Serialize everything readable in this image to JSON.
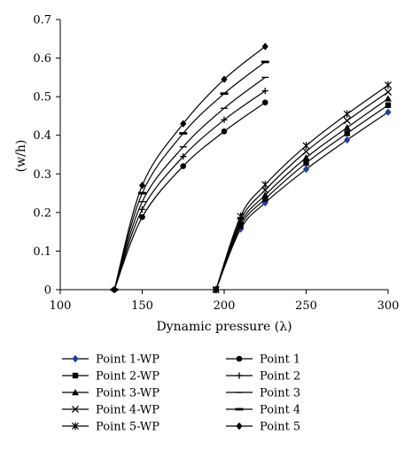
{
  "chart_data": {
    "type": "line",
    "xlabel": "Dynamic pressure (λ)",
    "ylabel": "(w/h)",
    "xlim": [
      100,
      300
    ],
    "ylim": [
      0,
      0.7
    ],
    "xticks": [
      "100",
      "150",
      "200",
      "250",
      "300"
    ],
    "yticks": [
      "0",
      "0.1",
      "0.2",
      "0.3",
      "0.4",
      "0.5",
      "0.6",
      "0.7"
    ],
    "grid": false,
    "legend_placement": "bottom",
    "series": [
      {
        "name": "Point 1-WP",
        "marker": "diamond",
        "color": "#1f3f9f",
        "x": [
          195,
          210,
          225,
          250,
          275,
          300
        ],
        "y": [
          0,
          0.157,
          0.225,
          0.312,
          0.388,
          0.46
        ]
      },
      {
        "name": "Point 2-WP",
        "marker": "square",
        "color": "#000000",
        "x": [
          195,
          210,
          225,
          250,
          275,
          300
        ],
        "y": [
          0,
          0.165,
          0.235,
          0.328,
          0.405,
          0.478
        ]
      },
      {
        "name": "Point 3-WP",
        "marker": "triangle",
        "color": "#000000",
        "x": [
          195,
          210,
          225,
          250,
          275,
          300
        ],
        "y": [
          0,
          0.172,
          0.245,
          0.342,
          0.42,
          0.495
        ]
      },
      {
        "name": "Point 4-WP",
        "marker": "x",
        "color": "#000000",
        "x": [
          195,
          210,
          225,
          250,
          275,
          300
        ],
        "y": [
          0,
          0.18,
          0.258,
          0.358,
          0.438,
          0.512
        ]
      },
      {
        "name": "Point 5-WP",
        "marker": "asterisk",
        "color": "#000000",
        "x": [
          195,
          210,
          225,
          250,
          275,
          300
        ],
        "y": [
          0,
          0.19,
          0.272,
          0.373,
          0.455,
          0.53
        ]
      },
      {
        "name": "Point 1",
        "marker": "circle",
        "color": "#000000",
        "x": [
          133,
          150,
          175,
          200,
          225
        ],
        "y": [
          0,
          0.188,
          0.32,
          0.41,
          0.485
        ]
      },
      {
        "name": "Point 2",
        "marker": "plus",
        "color": "#000000",
        "x": [
          133,
          150,
          175,
          200,
          225
        ],
        "y": [
          0,
          0.208,
          0.345,
          0.44,
          0.515
        ]
      },
      {
        "name": "Point 3",
        "marker": "dash",
        "color": "#000000",
        "x": [
          133,
          150,
          175,
          200,
          225
        ],
        "y": [
          0,
          0.228,
          0.37,
          0.47,
          0.55
        ]
      },
      {
        "name": "Point 4",
        "marker": "bar",
        "color": "#000000",
        "x": [
          133,
          150,
          175,
          200,
          225
        ],
        "y": [
          0,
          0.25,
          0.405,
          0.508,
          0.59
        ]
      },
      {
        "name": "Point 5",
        "marker": "diamond",
        "color": "#000000",
        "x": [
          133,
          150,
          175,
          200,
          225
        ],
        "y": [
          0,
          0.27,
          0.43,
          0.545,
          0.63
        ]
      }
    ]
  }
}
